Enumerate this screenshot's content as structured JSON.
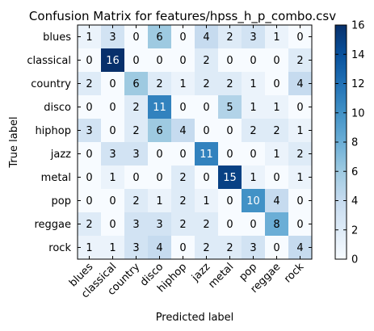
{
  "chart_data": {
    "type": "heatmap",
    "title": "Confusion Matrix for features/hpss_h_p_combo.csv",
    "xlabel": "Predicted label",
    "ylabel": "True label",
    "categories": [
      "blues",
      "classical",
      "country",
      "disco",
      "hiphop",
      "jazz",
      "metal",
      "pop",
      "reggae",
      "rock"
    ],
    "matrix": [
      [
        1,
        3,
        0,
        6,
        0,
        4,
        2,
        3,
        1,
        0
      ],
      [
        0,
        16,
        0,
        0,
        0,
        2,
        0,
        0,
        0,
        2
      ],
      [
        2,
        0,
        6,
        2,
        1,
        2,
        2,
        1,
        0,
        4
      ],
      [
        0,
        0,
        2,
        11,
        0,
        0,
        5,
        1,
        1,
        0
      ],
      [
        3,
        0,
        2,
        6,
        4,
        0,
        0,
        2,
        2,
        1
      ],
      [
        0,
        3,
        3,
        0,
        0,
        11,
        0,
        0,
        1,
        2
      ],
      [
        0,
        1,
        0,
        0,
        2,
        0,
        15,
        1,
        0,
        1
      ],
      [
        0,
        0,
        2,
        1,
        2,
        1,
        0,
        10,
        4,
        0
      ],
      [
        2,
        0,
        3,
        3,
        2,
        2,
        0,
        0,
        8,
        0
      ],
      [
        1,
        1,
        3,
        4,
        0,
        2,
        2,
        3,
        0,
        4
      ]
    ],
    "colormap": "Blues",
    "colorbar": {
      "range": [
        0,
        16
      ],
      "ticks": [
        "0",
        "2",
        "4",
        "6",
        "8",
        "10",
        "12",
        "14",
        "16"
      ]
    },
    "colors": {
      "low": "#f7fbff",
      "high": "#08306b"
    }
  }
}
